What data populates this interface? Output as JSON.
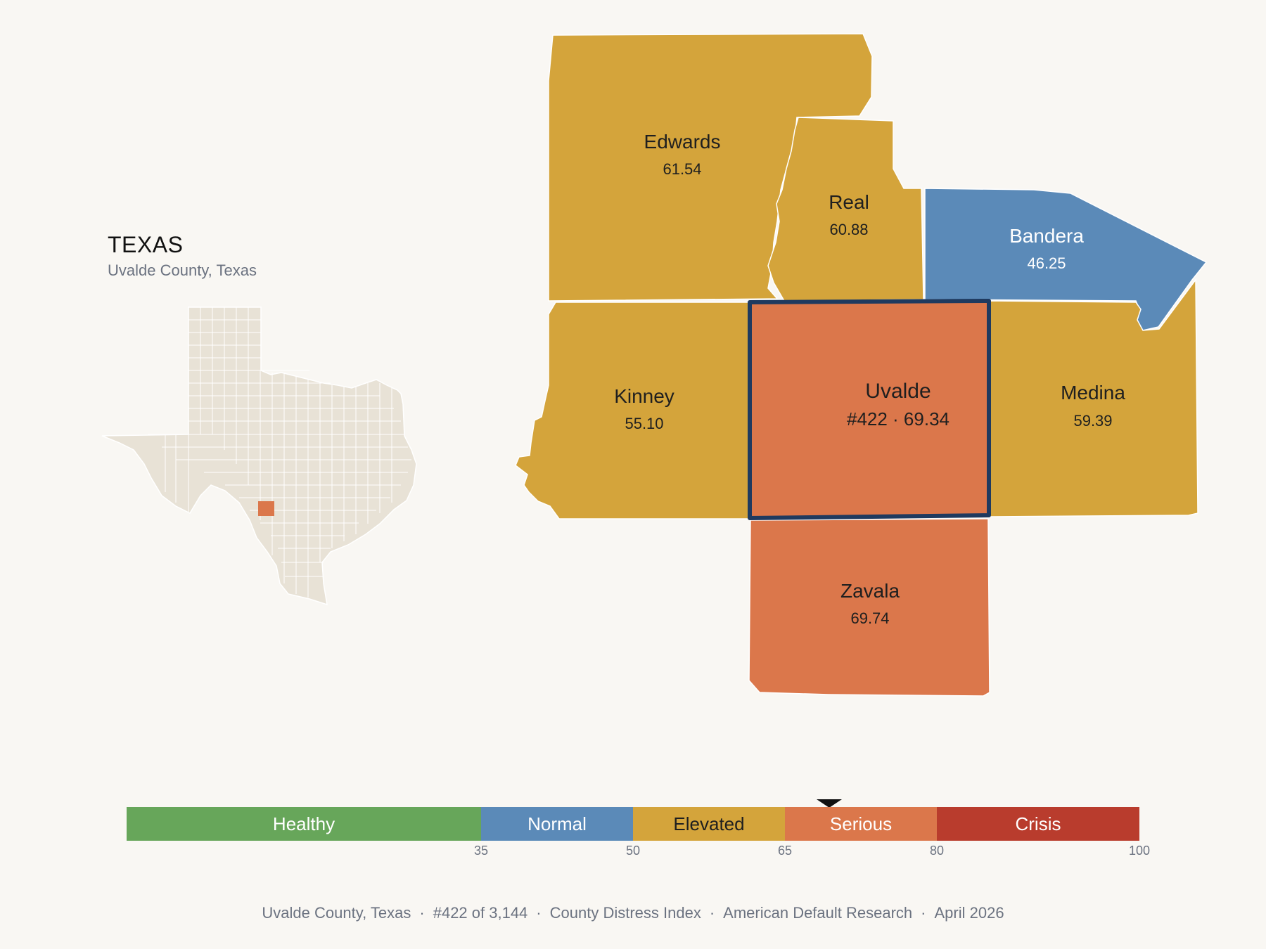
{
  "state": {
    "title": "TEXAS",
    "subtitle": "Uvalde County, Texas"
  },
  "counties": [
    {
      "name": "Edwards",
      "value": "61.54",
      "tier": "Elevated"
    },
    {
      "name": "Real",
      "value": "60.88",
      "tier": "Elevated"
    },
    {
      "name": "Bandera",
      "value": "46.25",
      "tier": "Normal"
    },
    {
      "name": "Kinney",
      "value": "55.10",
      "tier": "Elevated"
    },
    {
      "name": "Uvalde",
      "value": "#422 · 69.34",
      "tier": "Serious",
      "selected": true
    },
    {
      "name": "Medina",
      "value": "59.39",
      "tier": "Elevated"
    },
    {
      "name": "Zavala",
      "value": "69.74",
      "tier": "Serious"
    }
  ],
  "legend": {
    "segments": [
      {
        "label": "Healthy",
        "from": 0,
        "to": 35,
        "color": "#67a65a"
      },
      {
        "label": "Normal",
        "from": 35,
        "to": 50,
        "color": "#5b8ab8"
      },
      {
        "label": "Elevated",
        "from": 50,
        "to": 65,
        "color": "#d4a43b"
      },
      {
        "label": "Serious",
        "from": 65,
        "to": 80,
        "color": "#db774b"
      },
      {
        "label": "Crisis",
        "from": 80,
        "to": 100,
        "color": "#b93c2d"
      }
    ],
    "ticks": [
      "35",
      "50",
      "65",
      "80",
      "100"
    ],
    "marker_value": 69.34
  },
  "colors": {
    "selected_outline": "#1f3a5f",
    "state_fill": "#e8e2d6",
    "highlight": "#db774b"
  },
  "footer": [
    "Uvalde County, Texas",
    "#422 of 3,144",
    "County Distress Index",
    "American Default Research",
    "April 2026"
  ]
}
